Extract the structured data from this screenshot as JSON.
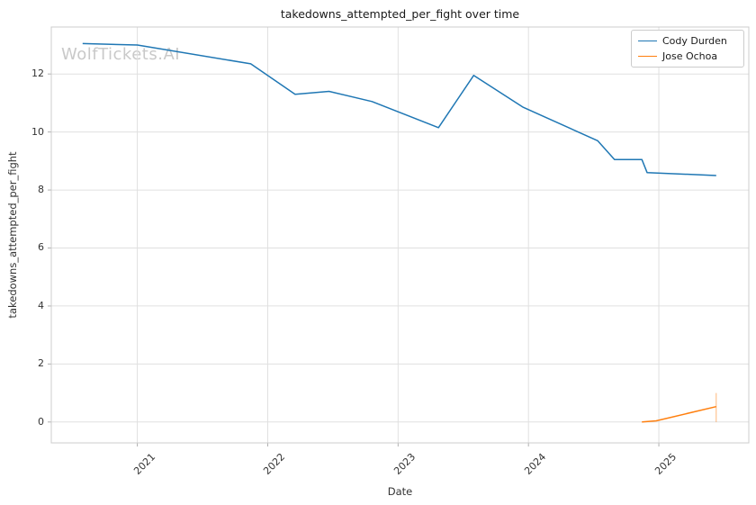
{
  "figure": {
    "watermark": "WolfTickets.AI"
  },
  "chart_data": {
    "type": "line",
    "title": "takedowns_attempted_per_fight over time",
    "xlabel": "Date",
    "ylabel": "takedowns_attempted_per_fight",
    "xlim": [
      2020.34,
      2025.69
    ],
    "ylim": [
      -0.72,
      13.62
    ],
    "xticks": {
      "values": [
        2021,
        2022,
        2023,
        2024,
        2025
      ],
      "labels": [
        "2021",
        "2022",
        "2023",
        "2024",
        "2025"
      ],
      "rotation_deg": 45
    },
    "yticks": {
      "values": [
        0,
        2,
        4,
        6,
        8,
        10,
        12
      ],
      "labels": [
        "0",
        "2",
        "4",
        "6",
        "8",
        "10",
        "12"
      ]
    },
    "grid": true,
    "legend": {
      "position": "upper right"
    },
    "series": [
      {
        "name": "Cody Durden",
        "color": "#1f77b4",
        "x": [
          2020.58,
          2021.0,
          2021.87,
          2022.21,
          2022.47,
          2022.8,
          2023.31,
          2023.58,
          2023.96,
          2024.53,
          2024.66,
          2024.87,
          2024.91,
          2025.44
        ],
        "y": [
          13.05,
          13.0,
          12.35,
          11.3,
          11.4,
          11.05,
          10.15,
          11.95,
          10.85,
          9.7,
          9.05,
          9.05,
          8.6,
          8.5
        ]
      },
      {
        "name": "Jose Ochoa",
        "color": "#ff7f0e",
        "x": [
          2024.87,
          2024.98,
          2025.44
        ],
        "y": [
          0.0,
          0.04,
          0.53
        ],
        "end_error_bar": {
          "x": 2025.44,
          "y_low": 0.0,
          "y_high": 1.0
        }
      }
    ],
    "styles": {
      "background": "#ffffff",
      "grid_color": "#e0e0e0",
      "spine_color": "#cccccc",
      "tick_mark_color": "#b0b0b0",
      "text_color": "#333333",
      "title_color": "#1a1a1a",
      "watermark_color": "#c9c9c9",
      "line_width": 1.5
    }
  }
}
